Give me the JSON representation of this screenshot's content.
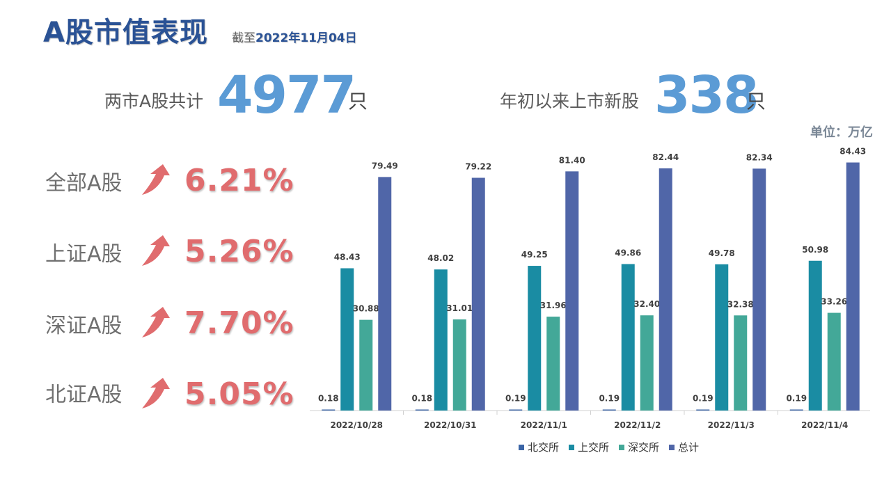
{
  "header": {
    "title": "A股市值表现",
    "date_prefix": "截至",
    "date": "2022年11月04日"
  },
  "stats": [
    {
      "label": "两市A股共计",
      "value": "4977",
      "unit": "只"
    },
    {
      "label": "年初以来上市新股",
      "value": "338",
      "unit": "只"
    }
  ],
  "unit_note": "单位：万亿",
  "indices": [
    {
      "label": "全部A股",
      "change": "6.21%",
      "direction": "up"
    },
    {
      "label": "上证A股",
      "change": "5.26%",
      "direction": "up"
    },
    {
      "label": "深证A股",
      "change": "7.70%",
      "direction": "up"
    },
    {
      "label": "北证A股",
      "change": "5.05%",
      "direction": "up"
    }
  ],
  "colors": {
    "title": "#2a5295",
    "stat_number": "#5b9bd5",
    "change_red": "#e06c6e",
    "series": [
      "#3b65a6",
      "#1a8ca3",
      "#43a898",
      "#5066a8"
    ]
  },
  "chart_data": {
    "type": "bar",
    "categories": [
      "2022/10/28",
      "2022/10/31",
      "2022/11/1",
      "2022/11/2",
      "2022/11/3",
      "2022/11/4"
    ],
    "series": [
      {
        "name": "北交所",
        "values": [
          0.18,
          0.18,
          0.19,
          0.19,
          0.19,
          0.19
        ]
      },
      {
        "name": "上交所",
        "values": [
          48.43,
          48.02,
          49.25,
          49.86,
          49.78,
          50.98
        ]
      },
      {
        "name": "深交所",
        "values": [
          30.88,
          31.01,
          31.96,
          32.4,
          32.38,
          33.26
        ]
      },
      {
        "name": "总计",
        "values": [
          79.49,
          79.22,
          81.4,
          82.44,
          82.34,
          84.43
        ]
      }
    ],
    "title": "",
    "xlabel": "",
    "ylabel": "",
    "ylim": [
      0,
      90
    ],
    "grid": false,
    "legend": "bottom"
  }
}
